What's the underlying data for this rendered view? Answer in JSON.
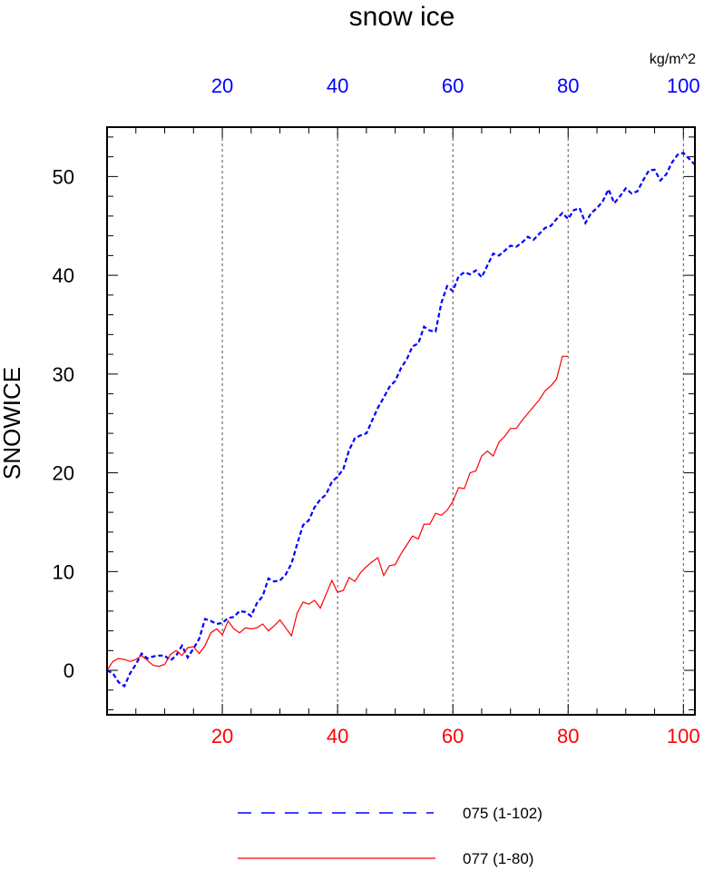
{
  "chart_data": {
    "type": "line",
    "title": "snow ice",
    "ylabel": "SNOWICE",
    "top_axis_units": "kg/m^2",
    "xlim": [
      0,
      102
    ],
    "ylim": [
      -4.5,
      55
    ],
    "grid": "vertical dashed at 20, 40, 60, 80, 100",
    "x_ticks": [
      20,
      40,
      60,
      80,
      100
    ],
    "x_tick_labels": [
      "20",
      "40",
      "60",
      "80",
      "100"
    ],
    "y_ticks": [
      0,
      10,
      20,
      30,
      40,
      50
    ],
    "y_tick_labels": [
      "0",
      "10",
      "20",
      "30",
      "40",
      "50"
    ],
    "top_axis_color": "#0000ff",
    "bottom_axis_color": "#ff0000",
    "series": [
      {
        "name": "075 (1-102)",
        "color": "#0000ff",
        "dash": "dashed",
        "x": [
          0,
          1,
          2,
          3,
          4,
          5,
          6,
          7,
          8,
          9,
          10,
          11,
          12,
          13,
          14,
          15,
          16,
          17,
          18,
          19,
          20,
          21,
          22,
          23,
          24,
          25,
          26,
          27,
          28,
          29,
          30,
          31,
          32,
          33,
          34,
          35,
          36,
          37,
          38,
          39,
          40,
          41,
          42,
          43,
          44,
          45,
          46,
          47,
          48,
          49,
          50,
          51,
          52,
          53,
          54,
          55,
          56,
          57,
          58,
          59,
          60,
          61,
          62,
          63,
          64,
          65,
          66,
          67,
          68,
          69,
          70,
          71,
          72,
          73,
          74,
          75,
          76,
          77,
          78,
          79,
          80,
          81,
          82,
          83,
          84,
          85,
          86,
          87,
          88,
          89,
          90,
          91,
          92,
          93,
          94,
          95,
          96,
          97,
          98,
          99,
          100,
          101,
          102
        ],
        "values": [
          0,
          -0.3,
          -1.2,
          -1.6,
          -0.3,
          0.6,
          1.7,
          1.2,
          1.4,
          1.5,
          1.5,
          1.0,
          1.5,
          2.5,
          1.3,
          2.2,
          3.2,
          5.2,
          5.0,
          4.7,
          4.8,
          5.3,
          5.4,
          6.0,
          5.9,
          5.5,
          6.8,
          7.5,
          9.3,
          9.0,
          9.1,
          9.7,
          10.8,
          12.8,
          14.7,
          15.2,
          16.5,
          17.3,
          17.8,
          19.1,
          19.6,
          20.4,
          22.3,
          23.5,
          23.8,
          24.0,
          25.3,
          26.6,
          27.6,
          28.7,
          29.3,
          30.6,
          31.5,
          32.8,
          33.1,
          34.8,
          34.4,
          34.3,
          37.2,
          38.9,
          38.4,
          39.9,
          40.3,
          40.1,
          40.5,
          39.8,
          41.0,
          42.2,
          42.0,
          42.5,
          43.0,
          42.9,
          43.3,
          43.9,
          43.6,
          44.2,
          44.8,
          45.0,
          45.7,
          46.3,
          45.7,
          46.6,
          46.8,
          45.3,
          46.3,
          46.8,
          47.5,
          48.7,
          47.3,
          48.0,
          48.8,
          48.3,
          48.5,
          49.6,
          50.6,
          50.7,
          49.6,
          50.2,
          51.4,
          52.2,
          52.4,
          51.8,
          51.2
        ]
      },
      {
        "name": "077 (1-80)",
        "color": "#ff0000",
        "dash": "solid",
        "x": [
          0,
          1,
          2,
          3,
          4,
          5,
          6,
          7,
          8,
          9,
          10,
          11,
          12,
          13,
          14,
          15,
          16,
          17,
          18,
          19,
          20,
          21,
          22,
          23,
          24,
          25,
          26,
          27,
          28,
          29,
          30,
          31,
          32,
          33,
          34,
          35,
          36,
          37,
          38,
          39,
          40,
          41,
          42,
          43,
          44,
          45,
          46,
          47,
          48,
          49,
          50,
          51,
          52,
          53,
          54,
          55,
          56,
          57,
          58,
          59,
          60,
          61,
          62,
          63,
          64,
          65,
          66,
          67,
          68,
          69,
          70,
          71,
          72,
          73,
          74,
          75,
          76,
          77,
          78,
          79,
          80
        ],
        "values": [
          0,
          0.9,
          1.2,
          1.1,
          0.9,
          1.1,
          1.5,
          1.0,
          0.5,
          0.4,
          0.6,
          1.6,
          2.0,
          1.5,
          2.3,
          2.4,
          1.7,
          2.5,
          3.8,
          4.2,
          3.6,
          5.0,
          4.2,
          3.8,
          4.3,
          4.2,
          4.3,
          4.7,
          4.0,
          4.5,
          5.1,
          4.3,
          3.5,
          5.8,
          6.9,
          6.7,
          7.1,
          6.3,
          7.7,
          9.1,
          7.9,
          8.1,
          9.4,
          9.0,
          9.9,
          10.5,
          11.0,
          11.4,
          9.6,
          10.6,
          10.7,
          11.8,
          12.7,
          13.6,
          13.3,
          14.8,
          14.8,
          15.9,
          15.7,
          16.2,
          17.1,
          18.5,
          18.4,
          20.0,
          20.2,
          21.7,
          22.2,
          21.7,
          23.1,
          23.7,
          24.5,
          24.5,
          25.3,
          26.0,
          26.7,
          27.4,
          28.3,
          28.8,
          29.5,
          31.8,
          31.8
        ]
      }
    ]
  }
}
